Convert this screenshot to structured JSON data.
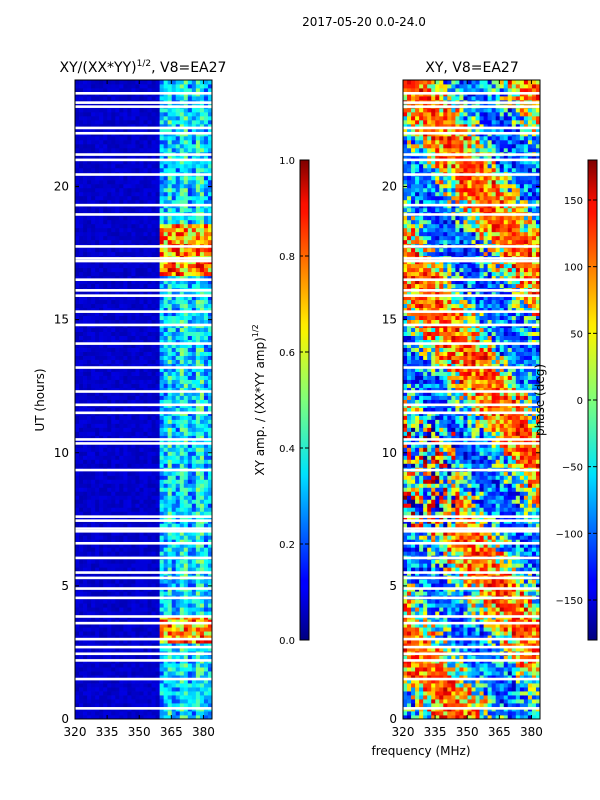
{
  "suptitle": "2017-05-20 0.0-24.0",
  "chart_data": [
    {
      "type": "heatmap",
      "title_main": "XY/(XX*YY)",
      "title_sup": "1/2",
      "title_rest": ", V8=EA27",
      "ylabel": "UT (hours)",
      "xlim": [
        320,
        384
      ],
      "ylim": [
        0,
        24
      ],
      "xticks": [
        320,
        335,
        350,
        365,
        380
      ],
      "yticks": [
        0,
        5,
        10,
        15,
        20
      ],
      "colorbar": {
        "label_main": "XY amp. / (XX*YY amp)",
        "label_sup": "1/2",
        "range": [
          0.0,
          1.0
        ],
        "ticks": [
          "0.0",
          "0.2",
          "0.4",
          "0.6",
          "0.8",
          "1.0"
        ],
        "tick_values": [
          0.0,
          0.2,
          0.4,
          0.6,
          0.8,
          1.0
        ]
      }
    },
    {
      "type": "heatmap",
      "title": "XY, V8=EA27",
      "xlim": [
        320,
        384
      ],
      "ylim": [
        0,
        24
      ],
      "xticks": [
        320,
        335,
        350,
        365,
        380
      ],
      "yticks": [
        0,
        5,
        10,
        15,
        20
      ],
      "colorbar": {
        "label": "phase (deg)",
        "range": [
          -180,
          180
        ],
        "ticks": [
          "−150",
          "−100",
          "−50",
          "0",
          "50",
          "100",
          "150"
        ],
        "tick_values": [
          -150,
          -100,
          -50,
          0,
          50,
          100,
          150
        ]
      }
    }
  ],
  "xlabel": "frequency (MHz)"
}
